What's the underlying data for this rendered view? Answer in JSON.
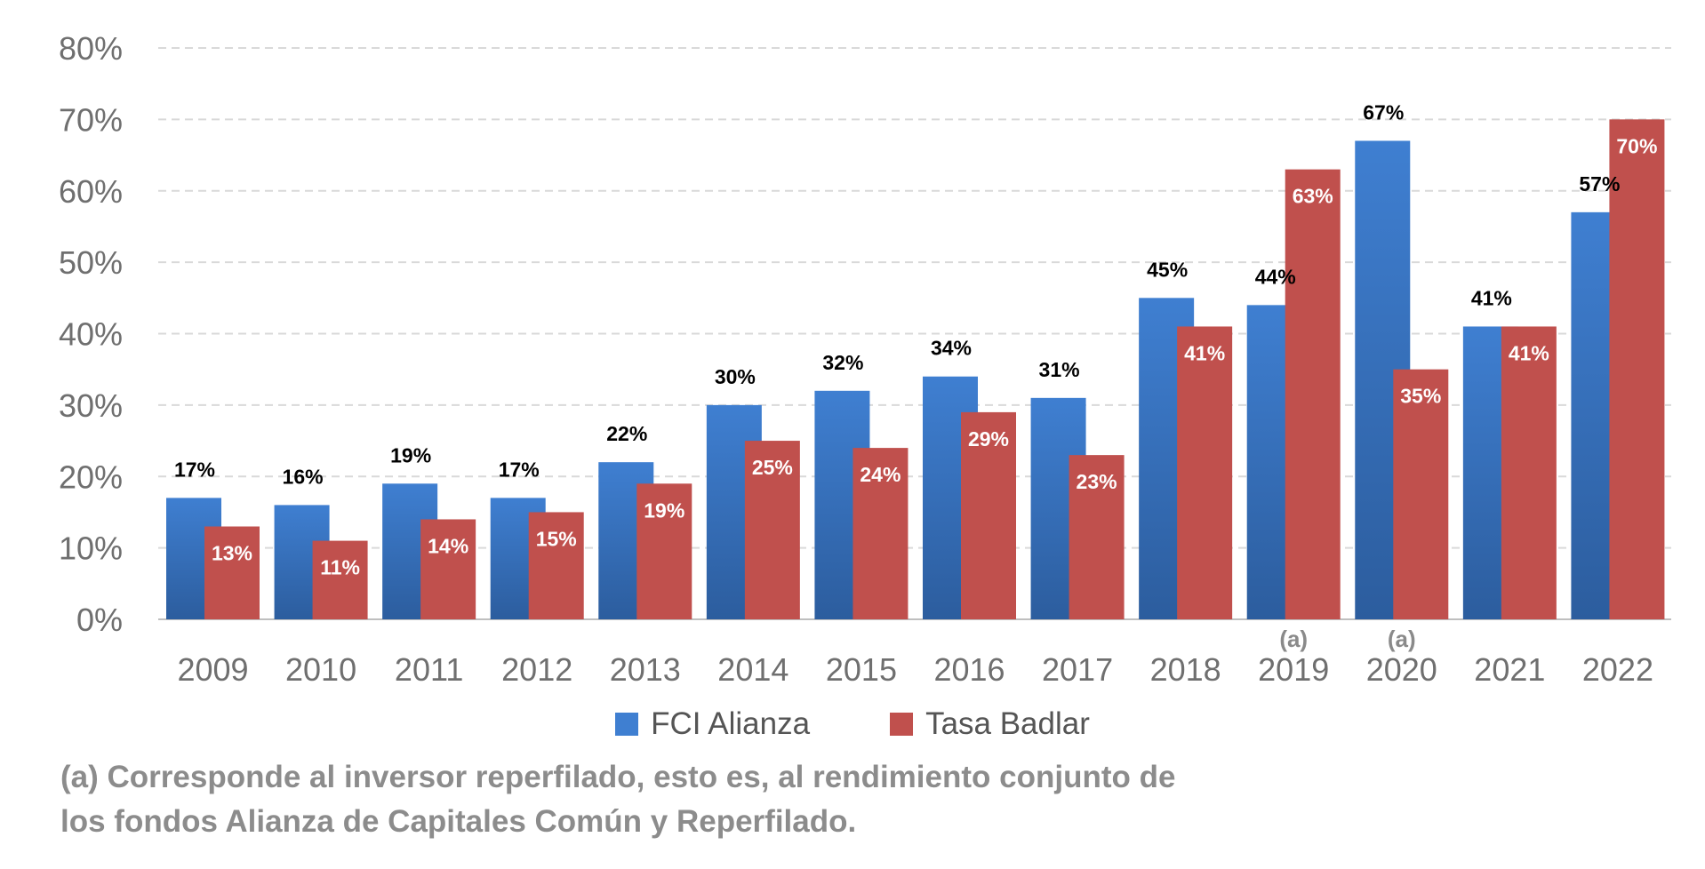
{
  "chart_data": {
    "type": "bar",
    "categories": [
      "2009",
      "2010",
      "2011",
      "2012",
      "2013",
      "2014",
      "2015",
      "2016",
      "2017",
      "2018",
      "2019",
      "2020",
      "2021",
      "2022"
    ],
    "series": [
      {
        "name": "FCI Alianza",
        "values": [
          17,
          16,
          19,
          17,
          22,
          30,
          32,
          34,
          31,
          45,
          44,
          67,
          41,
          57
        ],
        "value_labels": [
          "17%",
          "16%",
          "19%",
          "17%",
          "22%",
          "30%",
          "32%",
          "34%",
          "31%",
          "45%",
          "44%",
          "67%",
          "41%",
          "57%"
        ],
        "color_top": "#3f7fd1",
        "color_bottom": "#2c5d9e",
        "label_color": "#000000"
      },
      {
        "name": "Tasa Badlar",
        "values": [
          13,
          11,
          14,
          15,
          19,
          25,
          24,
          29,
          23,
          41,
          63,
          35,
          41,
          70
        ],
        "value_labels": [
          "13%",
          "11%",
          "14%",
          "15%",
          "19%",
          "25%",
          "24%",
          "29%",
          "23%",
          "41%",
          "63%",
          "35%",
          "41%",
          "70%"
        ],
        "color_top": "#c0504d",
        "color_bottom": "#c0504d",
        "label_color": "#ffffff"
      }
    ],
    "ylim": [
      0,
      80
    ],
    "yticks": [
      0,
      10,
      20,
      30,
      40,
      50,
      60,
      70,
      80
    ],
    "ytick_labels": [
      "0%",
      "10%",
      "20%",
      "30%",
      "40%",
      "50%",
      "60%",
      "70%",
      "80%"
    ],
    "grid": true,
    "legend_position": "bottom",
    "annotations": [
      {
        "category": "2019",
        "text": "(a)"
      },
      {
        "category": "2020",
        "text": "(a)"
      }
    ]
  },
  "footnote": {
    "line1": "(a) Corresponde al inversor reperfilado, esto es, al rendimiento conjunto de",
    "line2": "los fondos Alianza de Capitales Común y Reperfilado."
  },
  "colors": {
    "grid": "#d9d9d9",
    "axis": "#bfbfbf",
    "tick_text": "#6f6f6f"
  }
}
